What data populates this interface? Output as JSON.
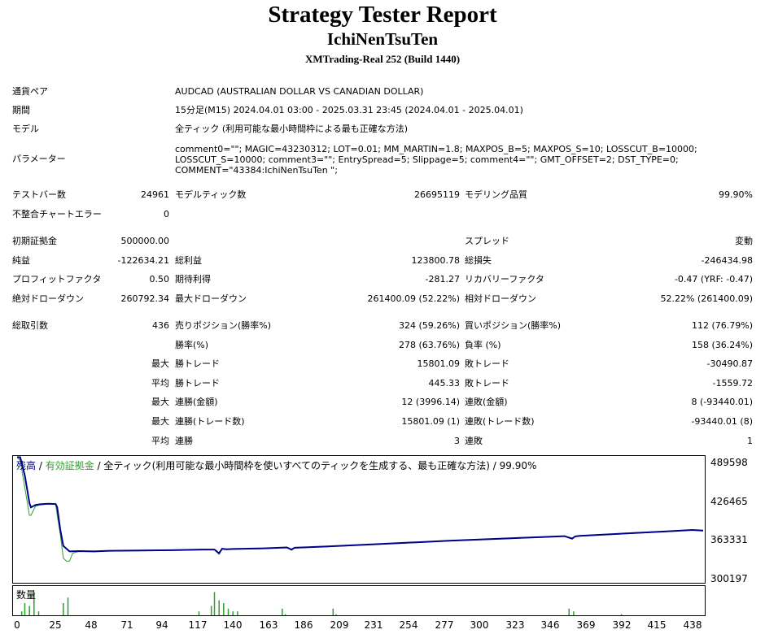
{
  "header": {
    "title": "Strategy Tester Report",
    "ea_name": "IchiNenTsuTen",
    "server": "XMTrading-Real 252 (Build 1440)"
  },
  "info": {
    "symbol_label": "通貨ペア",
    "symbol_value": "AUDCAD (AUSTRALIAN DOLLAR VS CANADIAN DOLLAR)",
    "period_label": "期間",
    "period_value": "15分足(M15) 2024.04.01 03:00 - 2025.03.31 23:45 (2024.04.01 - 2025.04.01)",
    "model_label": "モデル",
    "model_value": "全ティック (利用可能な最小時間枠による最も正確な方法)",
    "params_label": "パラメーター",
    "params_value": "comment0=\"\"; MAGIC=43230312; LOT=0.01; MM_MARTIN=1.8; MAXPOS_B=5; MAXPOS_S=10; LOSSCUT_B=10000; LOSSCUT_S=10000; comment3=\"\"; EntrySpread=5; Slippage=5; comment4=\"\"; GMT_OFFSET=2; DST_TYPE=0; COMMENT=\"43384:IchiNenTsuTen \";"
  },
  "stats": {
    "bars_label": "テストバー数",
    "bars_value": "24961",
    "ticks_label": "モデルティック数",
    "ticks_value": "26695119",
    "quality_label": "モデリング品質",
    "quality_value": "99.90%",
    "mismatch_label": "不整合チャートエラー",
    "mismatch_value": "0",
    "deposit_label": "初期証拠金",
    "deposit_value": "500000.00",
    "spread_label": "スプレッド",
    "spread_value": "変動",
    "net_label": "純益",
    "net_value": "-122634.21",
    "gross_profit_label": "総利益",
    "gross_profit_value": "123800.78",
    "gross_loss_label": "総損失",
    "gross_loss_value": "-246434.98",
    "pf_label": "プロフィットファクタ",
    "pf_value": "0.50",
    "expected_label": "期待利得",
    "expected_value": "-281.27",
    "recovery_label": "リカバリーファクタ",
    "recovery_value": "-0.47 (YRF: -0.47)",
    "abs_dd_label": "絶対ドローダウン",
    "abs_dd_value": "260792.34",
    "max_dd_label": "最大ドローダウン",
    "max_dd_value": "261400.09 (52.22%)",
    "rel_dd_label": "相対ドローダウン",
    "rel_dd_value": "52.22% (261400.09)",
    "trades_label": "総取引数",
    "trades_value": "436",
    "short_label": "売りポジション(勝率%)",
    "short_value": "324 (59.26%)",
    "long_label": "買いポジション(勝率%)",
    "long_value": "112 (76.79%)",
    "win_rate_label": "勝率(%)",
    "win_rate_value": "278 (63.76%)",
    "loss_rate_label": "負率 (%)",
    "loss_rate_value": "158 (36.24%)",
    "max_word": "最大",
    "avg_word": "平均",
    "max_win_label": "勝トレード",
    "max_win_value": "15801.09",
    "max_loss_label": "敗トレード",
    "max_loss_value": "-30490.87",
    "avg_win_label": "勝トレード",
    "avg_win_value": "445.33",
    "avg_loss_label": "敗トレード",
    "avg_loss_value": "-1559.72",
    "cons_win_money_label": "連勝(金額)",
    "cons_win_money_value": "12 (3996.14)",
    "cons_loss_money_label": "連敗(金額)",
    "cons_loss_money_value": "8 (-93440.01)",
    "cons_win_count_label": "連勝(トレード数)",
    "cons_win_count_value": "15801.09 (1)",
    "cons_loss_count_label": "連敗(トレード数)",
    "cons_loss_count_value": "-93440.01 (8)",
    "avg_cons_win_label": "連勝",
    "avg_cons_win_value": "3",
    "avg_cons_loss_label": "連敗",
    "avg_cons_loss_value": "1"
  },
  "chart_legend": {
    "balance": "残高",
    "sep1": " / ",
    "equity": "有効証拠金",
    "sep2": " / ",
    "desc": "全ティック(利用可能な最小時間枠を使いすべてのティックを生成する、最も正確な方法)",
    "sep3": " / ",
    "quality": "99.90%"
  },
  "volume_label": "数量",
  "colors": {
    "balance": "#00008b",
    "equity": "#2e9e2e",
    "volume": "#2e9e2e"
  },
  "chart_data": {
    "type": "line",
    "y_ticks": [
      "489598",
      "426465",
      "363331",
      "300197"
    ],
    "y_tick_values": [
      489598,
      426465,
      363331,
      300197
    ],
    "x_ticks": [
      "0",
      "25",
      "48",
      "71",
      "94",
      "117",
      "140",
      "163",
      "186",
      "209",
      "231",
      "254",
      "277",
      "300",
      "323",
      "346",
      "369",
      "392",
      "415",
      "438"
    ],
    "ylim": [
      292000,
      502000
    ],
    "xlim": [
      0,
      445
    ],
    "series": [
      {
        "name": "残高",
        "x": [
          0,
          2,
          5,
          8,
          9,
          12,
          15,
          20,
          25,
          26,
          28,
          30,
          34,
          40,
          50,
          60,
          80,
          100,
          120,
          128,
          131,
          133,
          134,
          136,
          140,
          160,
          175,
          178,
          180,
          200,
          230,
          260,
          280,
          300,
          320,
          340,
          355,
          360,
          362,
          365,
          380,
          400,
          420,
          438,
          445
        ],
        "y": [
          500000,
          500000,
          470000,
          425000,
          418000,
          422000,
          423000,
          424000,
          423500,
          418000,
          382000,
          355000,
          346000,
          346500,
          346000,
          347000,
          347500,
          348000,
          349000,
          349000,
          343000,
          350500,
          350000,
          349500,
          350000,
          351000,
          352500,
          349000,
          352000,
          354000,
          357500,
          361000,
          363500,
          365500,
          367500,
          369500,
          371000,
          367000,
          370500,
          371500,
          373500,
          376000,
          378500,
          381000,
          380000
        ]
      },
      {
        "name": "有効証拠金",
        "x": [
          0,
          2,
          5,
          8,
          9,
          12,
          15,
          20,
          25,
          26,
          28,
          30,
          32,
          34,
          36,
          40,
          50,
          60,
          80,
          100,
          120,
          128,
          131,
          133,
          134,
          136,
          140,
          160,
          175,
          178,
          180,
          200,
          230,
          260,
          280,
          300,
          320,
          340,
          355,
          360,
          362,
          365,
          380,
          400,
          420,
          438,
          445
        ],
        "y": [
          500000,
          495000,
          450000,
          405000,
          405000,
          420000,
          422000,
          423500,
          423000,
          405000,
          375000,
          335000,
          330000,
          330000,
          343000,
          346000,
          345500,
          346500,
          347000,
          347500,
          348500,
          348500,
          341000,
          350000,
          349500,
          349000,
          349500,
          350500,
          352000,
          348000,
          351500,
          353500,
          357000,
          360500,
          363000,
          365000,
          367000,
          369000,
          370500,
          366000,
          370000,
          371000,
          373000,
          375500,
          378000,
          380500,
          379500
        ]
      }
    ],
    "volume": {
      "name": "数量",
      "x": [
        3,
        5,
        8,
        11,
        14,
        30,
        33,
        118,
        126,
        128,
        131,
        134,
        137,
        140,
        143,
        172,
        174,
        205,
        207,
        358,
        361,
        392
      ],
      "y": [
        0.02,
        0.05,
        0.04,
        0.09,
        0.02,
        0.05,
        0.07,
        0.02,
        0.04,
        0.09,
        0.06,
        0.05,
        0.03,
        0.02,
        0.02,
        0.03,
        0.01,
        0.03,
        0.01,
        0.03,
        0.02,
        0.01
      ]
    }
  }
}
